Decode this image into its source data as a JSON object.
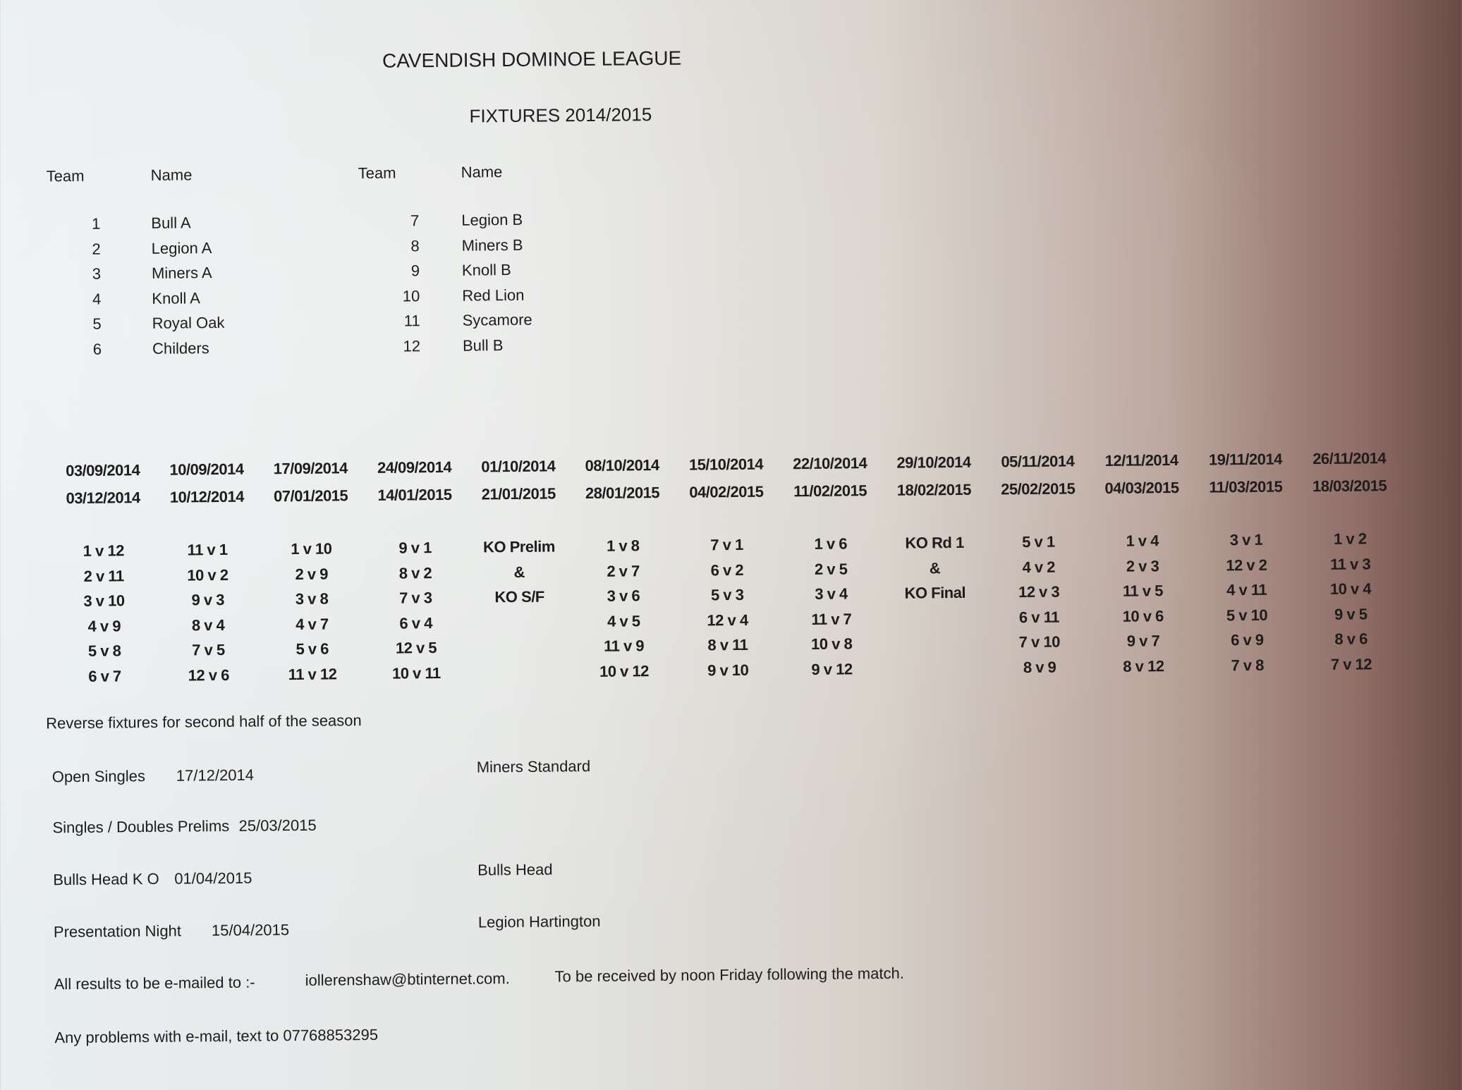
{
  "title": "CAVENDISH DOMINOE LEAGUE",
  "subtitle": "FIXTURES 2014/2015",
  "team_headers": {
    "team1": "Team",
    "name1": "Name",
    "team2": "Team",
    "name2": "Name"
  },
  "teams_left": [
    {
      "num": "1",
      "name": "Bull A"
    },
    {
      "num": "2",
      "name": "Legion A"
    },
    {
      "num": "3",
      "name": "Miners A"
    },
    {
      "num": "4",
      "name": "Knoll A"
    },
    {
      "num": "5",
      "name": "Royal Oak"
    },
    {
      "num": "6",
      "name": "Childers"
    }
  ],
  "teams_right": [
    {
      "num": "7",
      "name": "Legion B"
    },
    {
      "num": "8",
      "name": "Miners B"
    },
    {
      "num": "9",
      "name": "Knoll B"
    },
    {
      "num": "10",
      "name": "Red Lion"
    },
    {
      "num": "11",
      "name": "Sycamore"
    },
    {
      "num": "12",
      "name": "Bull B"
    }
  ],
  "fixture_columns": [
    {
      "date1": "03/09/2014",
      "date2": "03/12/2014",
      "matches": [
        "1 v 12",
        "2 v 11",
        "3 v 10",
        "4 v 9",
        "5 v 8",
        "6 v 7"
      ]
    },
    {
      "date1": "10/09/2014",
      "date2": "10/12/2014",
      "matches": [
        "11 v 1",
        "10 v 2",
        "9 v 3",
        "8 v 4",
        "7 v 5",
        "12 v 6"
      ]
    },
    {
      "date1": "17/09/2014",
      "date2": "07/01/2015",
      "matches": [
        "1 v 10",
        "2 v 9",
        "3 v 8",
        "4 v 7",
        "5 v 6",
        "11 v 12"
      ]
    },
    {
      "date1": "24/09/2014",
      "date2": "14/01/2015",
      "matches": [
        "9 v 1",
        "8 v 2",
        "7 v 3",
        "6 v 4",
        "12 v 5",
        "10 v 11"
      ]
    },
    {
      "date1": "01/10/2014",
      "date2": "21/01/2015",
      "matches": [
        "KO Prelim",
        "&",
        "KO S/F"
      ]
    },
    {
      "date1": "08/10/2014",
      "date2": "28/01/2015",
      "matches": [
        "1 v 8",
        "2 v 7",
        "3 v 6",
        "4 v 5",
        "11 v 9",
        "10 v 12"
      ]
    },
    {
      "date1": "15/10/2014",
      "date2": "04/02/2015",
      "matches": [
        "7 v 1",
        "6 v 2",
        "5 v 3",
        "12 v 4",
        "8 v 11",
        "9 v 10"
      ]
    },
    {
      "date1": "22/10/2014",
      "date2": "11/02/2015",
      "matches": [
        "1 v 6",
        "2 v 5",
        "3 v 4",
        "11 v 7",
        "10 v 8",
        "9 v 12"
      ]
    },
    {
      "date1": "29/10/2014",
      "date2": "18/02/2015",
      "matches": [
        "KO Rd 1",
        "&",
        "KO Final"
      ]
    },
    {
      "date1": "05/11/2014",
      "date2": "25/02/2015",
      "matches": [
        "5 v 1",
        "4 v 2",
        "12 v 3",
        "6 v 11",
        "7 v 10",
        "8 v 9"
      ]
    },
    {
      "date1": "12/11/2014",
      "date2": "04/03/2015",
      "matches": [
        "1 v 4",
        "2 v 3",
        "11 v 5",
        "10 v 6",
        "9 v 7",
        "8 v 12"
      ]
    },
    {
      "date1": "19/11/2014",
      "date2": "11/03/2015",
      "matches": [
        "3 v 1",
        "12 v 2",
        "4 v 11",
        "5 v 10",
        "6 v 9",
        "7 v 8"
      ]
    },
    {
      "date1": "26/11/2014",
      "date2": "18/03/2015",
      "matches": [
        "1 v 2",
        "11 v 3",
        "10 v 4",
        "9 v 5",
        "8 v 6",
        "7 v 12"
      ]
    }
  ],
  "reverse_note": "Reverse fixtures for second half of the season",
  "events": [
    {
      "label": "Open Singles",
      "date": "17/12/2014",
      "venue": "Miners Standard"
    },
    {
      "label": "Singles / Doubles Prelims",
      "date": "25/03/2015",
      "venue": ""
    },
    {
      "label": "Bulls Head K O",
      "date": "01/04/2015",
      "venue": "Bulls Head"
    },
    {
      "label": "Presentation Night",
      "date": "15/04/2015",
      "venue": "Legion Hartington"
    }
  ],
  "results_note": {
    "prefix": "All results to be e-mailed to :-",
    "email": "iollerenshaw@btinternet.com.",
    "suffix": "To be received by noon Friday following the match."
  },
  "problems_note": "Any problems with e-mail,  text to 07768853295"
}
